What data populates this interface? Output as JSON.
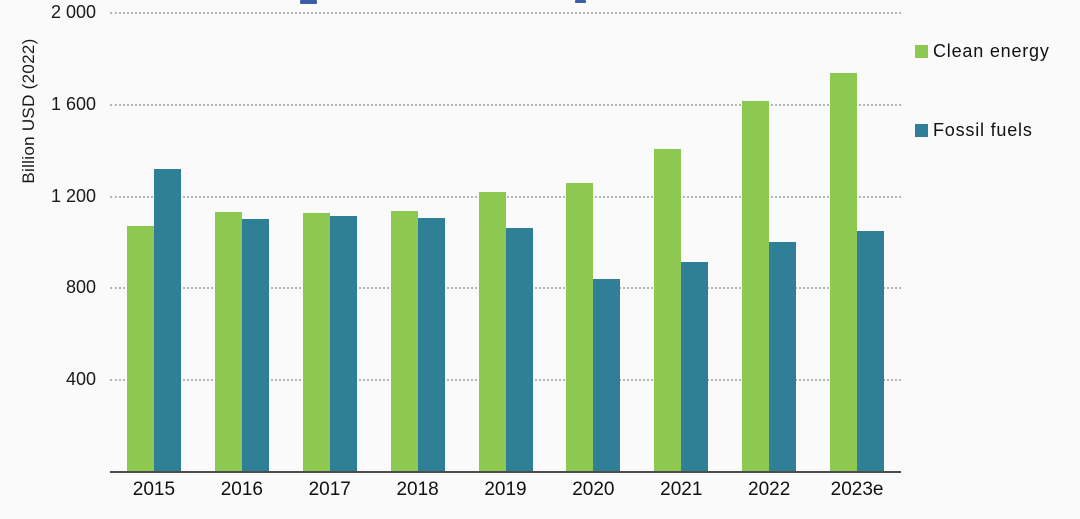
{
  "page": {
    "background": "#fafafa",
    "cropped_title_fragment_color": "#3a5fa8"
  },
  "chart_data": {
    "type": "bar",
    "title": "",
    "ylabel": "Billion USD (2022)",
    "xlabel": "",
    "ylim": [
      0,
      2000
    ],
    "grid": "horizontal-dotted",
    "legend_position": "top-right",
    "categories": [
      "2015",
      "2016",
      "2017",
      "2018",
      "2019",
      "2020",
      "2021",
      "2022",
      "2023e"
    ],
    "series": [
      {
        "name": "Clean energy",
        "color": "#8dc950",
        "values": [
          1073,
          1133,
          1128,
          1137,
          1222,
          1259,
          1407,
          1617,
          1740
        ]
      },
      {
        "name": "Fossil fuels",
        "color": "#2f7f96",
        "values": [
          1319,
          1104,
          1115,
          1107,
          1065,
          840,
          916,
          1003,
          1050
        ]
      }
    ],
    "yticks": [
      {
        "value": 2000,
        "label": "2 000"
      },
      {
        "value": 1600,
        "label": "1 600"
      },
      {
        "value": 1200,
        "label": "1 200"
      },
      {
        "value": 800,
        "label": "800"
      },
      {
        "value": 400,
        "label": "400"
      }
    ]
  }
}
